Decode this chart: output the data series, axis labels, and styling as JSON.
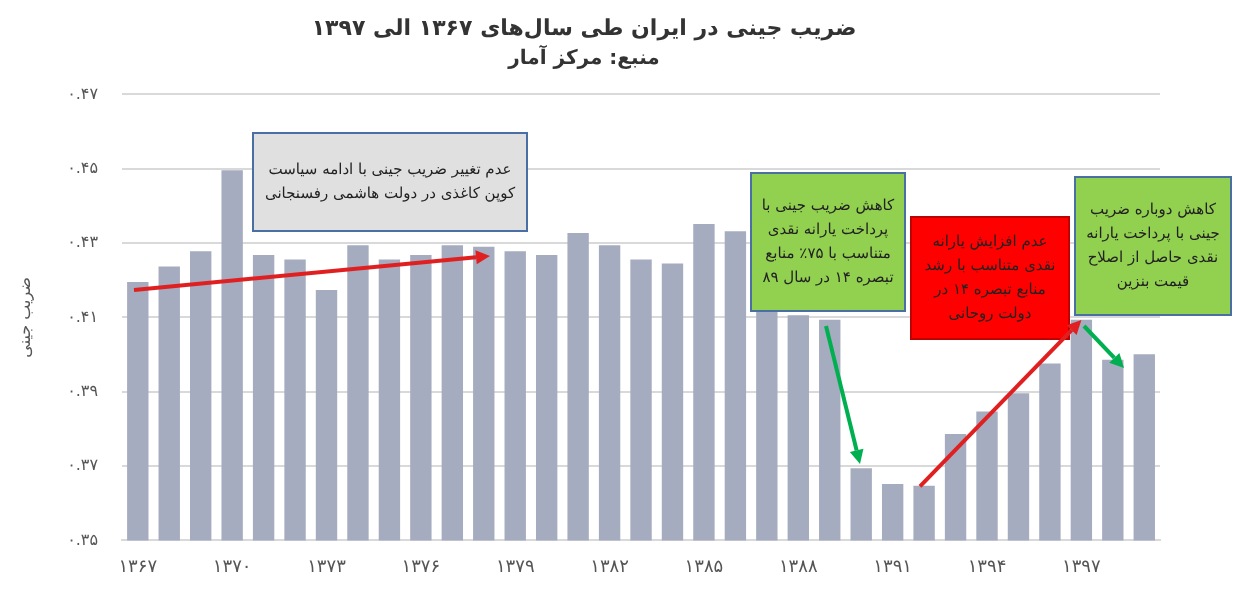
{
  "chart_data": {
    "type": "bar",
    "title": "ضریب جینی در ایران طی سال‌های ۱۳۶۷ الی ۱۳۹۷",
    "subtitle": "منبع: مرکز آمار",
    "ylabel": "ضریب جینی",
    "categories": [
      "۱۳۶۷",
      null,
      null,
      "۱۳۷۰",
      null,
      null,
      "۱۳۷۳",
      null,
      null,
      "۱۳۷۶",
      null,
      null,
      "۱۳۷۹",
      null,
      null,
      "۱۳۸۲",
      null,
      null,
      "۱۳۸۵",
      null,
      null,
      "۱۳۸۸",
      null,
      null,
      "۱۳۹۱",
      null,
      null,
      "۱۳۹۴",
      null,
      null,
      "۱۳۹۷",
      null,
      null
    ],
    "values": [
      0.4195,
      0.4237,
      0.4278,
      0.4496,
      0.4268,
      0.4256,
      0.4174,
      0.4294,
      0.4256,
      0.4268,
      0.4294,
      0.429,
      0.4278,
      0.4268,
      0.4327,
      0.4294,
      0.4256,
      0.4245,
      0.4351,
      0.4332,
      0.4119,
      0.4106,
      0.4094,
      0.3694,
      0.3652,
      0.3647,
      0.3786,
      0.3847,
      0.3896,
      0.3976,
      0.4094,
      0.3986,
      0.4001
    ],
    "color": "#a5acbf",
    "ylim": [
      0.35,
      0.47
    ],
    "yticks": [
      {
        "value": 0.35,
        "label": "۰.۳۵"
      },
      {
        "value": 0.37,
        "label": "۰.۳۷"
      },
      {
        "value": 0.39,
        "label": "۰.۳۹"
      },
      {
        "value": 0.41,
        "label": "۰.۴۱"
      },
      {
        "value": 0.43,
        "label": "۰.۴۳"
      },
      {
        "value": 0.45,
        "label": "۰.۴۵"
      },
      {
        "value": 0.47,
        "label": "۰.۴۷"
      }
    ],
    "grid": "y",
    "annotations": [
      "عدم تغییر ضریب جینی با ادامه سیاست کوپن کاغذی در دولت هاشمی رفسنجانی",
      "کاهش ضریب جینی با پرداخت یارانه نقدی متناسب با ۷۵٪ منابع تبصره ۱۴ در سال ۸۹",
      {
        "text": "عدم افزایش یارانه نقدی متناسب با رشد منابع تبصره ۱۴ در دولت روحانی",
        "x": "۱۳۹۷",
        "y": 0.4094
      },
      "کاهش دوباره ضریب جینی با پرداخت یارانه نقدی حاصل از اصلاح قیمت بنزین"
    ]
  }
}
